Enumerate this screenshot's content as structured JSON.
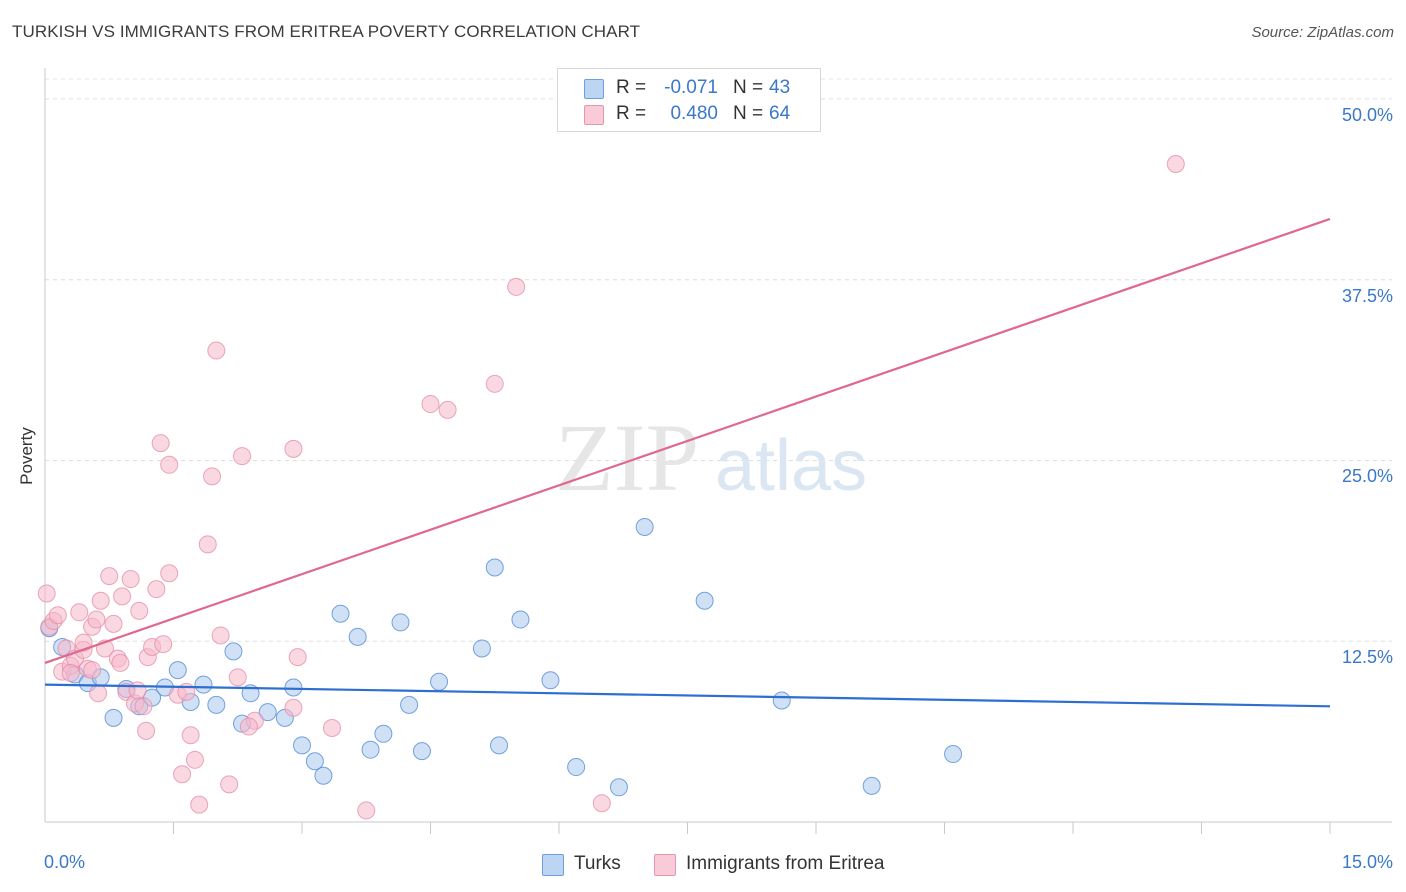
{
  "title": "TURKISH VS IMMIGRANTS FROM ERITREA POVERTY CORRELATION CHART",
  "source": "Source: ZipAtlas.com",
  "watermark": {
    "zip": "ZIP",
    "atlas": "atlas"
  },
  "legend_top": [
    {
      "r_label": "R =",
      "r_value": "-0.071",
      "n_label": "N =",
      "n_value": "43",
      "color": "#a9c8ef"
    },
    {
      "r_label": "R =",
      "r_value": "0.480",
      "n_label": "N =",
      "n_value": "64",
      "color": "#f5b8cb"
    }
  ],
  "chart_data": {
    "type": "scatter",
    "title": "TURKISH VS IMMIGRANTS FROM ERITREA POVERTY CORRELATION CHART",
    "ylabel": "Poverty",
    "xlabel": "",
    "xlim": [
      0,
      15
    ],
    "ylim": [
      0,
      52
    ],
    "x_tick_labels": [
      "0.0%",
      "15.0%"
    ],
    "y_ticks": [
      12.5,
      25.0,
      37.5,
      50.0
    ],
    "y_tick_labels": [
      "12.5%",
      "25.0%",
      "37.5%",
      "50.0%"
    ],
    "grid": "horizontal dashed",
    "legend_placement": "bottom",
    "series": [
      {
        "name": "Turks",
        "color": "#4a86d6",
        "fill": "#a9c8ef",
        "trend": {
          "x": [
            0,
            15
          ],
          "y": [
            9.5,
            8.0
          ],
          "color": "#2d6fd0"
        },
        "points": [
          [
            0.05,
            13.4
          ],
          [
            0.2,
            12.1
          ],
          [
            0.35,
            10.2
          ],
          [
            0.5,
            9.6
          ],
          [
            0.65,
            10.0
          ],
          [
            0.8,
            7.2
          ],
          [
            0.95,
            9.2
          ],
          [
            1.1,
            8.0
          ],
          [
            1.25,
            8.6
          ],
          [
            1.4,
            9.3
          ],
          [
            1.55,
            10.5
          ],
          [
            1.7,
            8.3
          ],
          [
            1.85,
            9.5
          ],
          [
            2.0,
            8.1
          ],
          [
            2.2,
            11.8
          ],
          [
            2.3,
            6.8
          ],
          [
            2.4,
            8.9
          ],
          [
            2.6,
            7.6
          ],
          [
            2.8,
            7.2
          ],
          [
            2.9,
            9.3
          ],
          [
            3.0,
            5.3
          ],
          [
            3.15,
            4.2
          ],
          [
            3.25,
            3.2
          ],
          [
            3.45,
            14.4
          ],
          [
            3.65,
            12.8
          ],
          [
            3.8,
            5.0
          ],
          [
            3.95,
            6.1
          ],
          [
            4.15,
            13.8
          ],
          [
            4.25,
            8.1
          ],
          [
            4.4,
            4.9
          ],
          [
            4.6,
            9.7
          ],
          [
            5.1,
            12.0
          ],
          [
            5.25,
            17.6
          ],
          [
            5.3,
            5.3
          ],
          [
            5.55,
            14.0
          ],
          [
            5.9,
            9.8
          ],
          [
            6.2,
            3.8
          ],
          [
            6.7,
            2.4
          ],
          [
            7.0,
            20.4
          ],
          [
            7.7,
            15.3
          ],
          [
            8.6,
            8.4
          ],
          [
            9.65,
            2.5
          ],
          [
            10.6,
            4.7
          ]
        ]
      },
      {
        "name": "Immigrants from Eritrea",
        "color": "#e48aa6",
        "fill": "#f5b8cb",
        "trend": {
          "x": [
            0,
            15
          ],
          "y": [
            11.0,
            41.7
          ],
          "color": "#e0688f"
        },
        "points": [
          [
            0.02,
            15.8
          ],
          [
            0.05,
            13.5
          ],
          [
            0.1,
            13.9
          ],
          [
            0.15,
            14.3
          ],
          [
            0.2,
            10.4
          ],
          [
            0.25,
            12.0
          ],
          [
            0.3,
            10.8
          ],
          [
            0.35,
            11.3
          ],
          [
            0.4,
            14.5
          ],
          [
            0.45,
            11.9
          ],
          [
            0.5,
            10.6
          ],
          [
            0.55,
            13.5
          ],
          [
            0.6,
            14.0
          ],
          [
            0.65,
            15.3
          ],
          [
            0.7,
            12.0
          ],
          [
            0.75,
            17.0
          ],
          [
            0.8,
            13.7
          ],
          [
            0.85,
            11.3
          ],
          [
            0.9,
            15.6
          ],
          [
            0.95,
            9.0
          ],
          [
            1.0,
            16.8
          ],
          [
            1.05,
            8.2
          ],
          [
            1.1,
            14.6
          ],
          [
            1.15,
            8.0
          ],
          [
            1.2,
            11.4
          ],
          [
            1.25,
            12.1
          ],
          [
            1.3,
            16.1
          ],
          [
            1.35,
            26.2
          ],
          [
            1.45,
            24.7
          ],
          [
            1.45,
            17.2
          ],
          [
            1.55,
            8.8
          ],
          [
            1.6,
            3.3
          ],
          [
            1.7,
            6.0
          ],
          [
            1.75,
            4.3
          ],
          [
            1.8,
            1.2
          ],
          [
            1.9,
            19.2
          ],
          [
            1.95,
            23.9
          ],
          [
            2.0,
            32.6
          ],
          [
            2.05,
            12.9
          ],
          [
            2.15,
            2.6
          ],
          [
            2.25,
            10.0
          ],
          [
            2.3,
            25.3
          ],
          [
            2.45,
            7.0
          ],
          [
            2.9,
            25.8
          ],
          [
            2.95,
            11.4
          ],
          [
            3.35,
            6.5
          ],
          [
            3.75,
            0.8
          ],
          [
            4.5,
            28.9
          ],
          [
            4.7,
            28.5
          ],
          [
            5.25,
            30.3
          ],
          [
            5.5,
            37.0
          ],
          [
            6.5,
            1.3
          ],
          [
            13.2,
            45.5
          ],
          [
            0.3,
            10.3
          ],
          [
            0.55,
            10.5
          ],
          [
            0.62,
            8.9
          ],
          [
            1.08,
            9.1
          ],
          [
            1.18,
            6.3
          ],
          [
            1.38,
            12.3
          ],
          [
            1.65,
            9.0
          ],
          [
            2.38,
            6.6
          ],
          [
            2.9,
            7.9
          ],
          [
            0.45,
            12.4
          ],
          [
            0.88,
            11.0
          ]
        ]
      }
    ]
  },
  "legend_bottom": [
    {
      "label": "Turks",
      "color": "#a9c8ef"
    },
    {
      "label": "Immigrants from Eritrea",
      "color": "#f5b8cb"
    }
  ]
}
